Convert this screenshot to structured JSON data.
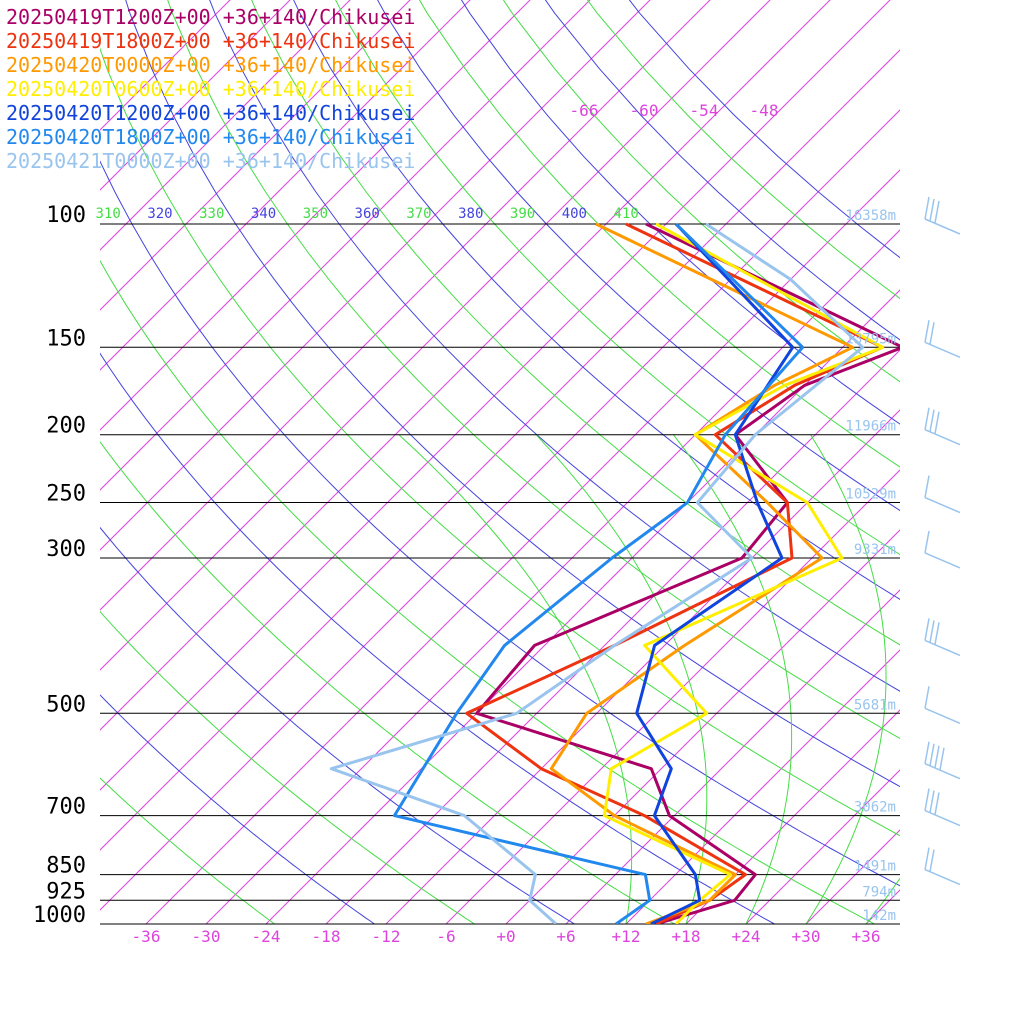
{
  "chart_data": {
    "type": "line",
    "subtype": "skew-T log-P sounding",
    "location": "+36+140/Chikusei",
    "pressure_levels": [
      {
        "p": 100,
        "label": "100",
        "height": "16358m"
      },
      {
        "p": 150,
        "label": "150",
        "height": "13795m"
      },
      {
        "p": 200,
        "label": "200",
        "height": "11966m"
      },
      {
        "p": 250,
        "label": "250",
        "height": "10529m"
      },
      {
        "p": 300,
        "label": "300",
        "height": "9331m"
      },
      {
        "p": 500,
        "label": "500",
        "height": "5681m"
      },
      {
        "p": 700,
        "label": "700",
        "height": "3062m"
      },
      {
        "p": 850,
        "label": "850",
        "height": "1491m"
      },
      {
        "p": 925,
        "label": "925",
        "height": "794m"
      },
      {
        "p": 1000,
        "label": "1000",
        "height": "142m"
      }
    ],
    "temp_tick_labels": [
      {
        "t": -36,
        "label": "-36"
      },
      {
        "t": -30,
        "label": "-30"
      },
      {
        "t": -24,
        "label": "-24"
      },
      {
        "t": -18,
        "label": "-18"
      },
      {
        "t": -12,
        "label": "-12"
      },
      {
        "t": -6,
        "label": "-6"
      },
      {
        "t": 0,
        "label": "+0"
      },
      {
        "t": 6,
        "label": "+6"
      },
      {
        "t": 12,
        "label": "+12"
      },
      {
        "t": 18,
        "label": "+18"
      },
      {
        "t": 24,
        "label": "+24"
      },
      {
        "t": 30,
        "label": "+30"
      },
      {
        "t": 36,
        "label": "+36"
      }
    ],
    "upper_temp_labels": [
      {
        "t": -66,
        "label": "-66"
      },
      {
        "t": -60,
        "label": "-60"
      },
      {
        "t": -54,
        "label": "-54"
      },
      {
        "t": -48,
        "label": "-48"
      }
    ],
    "theta_labels": [
      {
        "theta": 310,
        "label": "310",
        "color": "#44dd44"
      },
      {
        "theta": 320,
        "label": "320",
        "color": "#4444dd"
      },
      {
        "theta": 330,
        "label": "330",
        "color": "#44dd44"
      },
      {
        "theta": 340,
        "label": "340",
        "color": "#4444dd"
      },
      {
        "theta": 350,
        "label": "350",
        "color": "#44dd44"
      },
      {
        "theta": 360,
        "label": "360",
        "color": "#4444dd"
      },
      {
        "theta": 370,
        "label": "370",
        "color": "#44dd44"
      },
      {
        "theta": 380,
        "label": "380",
        "color": "#4444dd"
      },
      {
        "theta": 390,
        "label": "390",
        "color": "#44dd44"
      },
      {
        "theta": 400,
        "label": "400",
        "color": "#4444dd"
      },
      {
        "theta": 410,
        "label": "410",
        "color": "#44dd44"
      }
    ],
    "series": [
      {
        "name": "20250419T1200Z+00 +36+140/Chikusei",
        "color": "#aa0066",
        "points": [
          [
            1000,
            15
          ],
          [
            925,
            20.5
          ],
          [
            850,
            20
          ],
          [
            700,
            5.5
          ],
          [
            600,
            -1
          ],
          [
            500,
            -24
          ],
          [
            400,
            -25
          ],
          [
            300,
            -13
          ],
          [
            250,
            -14
          ],
          [
            200,
            -26
          ],
          [
            170,
            -24
          ],
          [
            150,
            -18
          ],
          [
            100,
            -56
          ]
        ]
      },
      {
        "name": "20250419T1800Z+00 +36+140/Chikusei",
        "color": "#ee3311",
        "points": [
          [
            1000,
            15
          ],
          [
            925,
            18
          ],
          [
            850,
            19
          ],
          [
            700,
            3
          ],
          [
            600,
            -12
          ],
          [
            500,
            -25
          ],
          [
            400,
            -17
          ],
          [
            300,
            -8
          ],
          [
            250,
            -14
          ],
          [
            200,
            -28
          ],
          [
            170,
            -25
          ],
          [
            150,
            -20
          ],
          [
            100,
            -58
          ]
        ]
      },
      {
        "name": "20250420T0000Z+00 +36+140/Chikusei",
        "color": "#ff9900",
        "points": [
          [
            1000,
            14
          ],
          [
            925,
            18
          ],
          [
            850,
            18
          ],
          [
            700,
            0
          ],
          [
            600,
            -11
          ],
          [
            500,
            -13
          ],
          [
            400,
            -10
          ],
          [
            300,
            -5
          ],
          [
            250,
            -16
          ],
          [
            200,
            -30
          ],
          [
            170,
            -27
          ],
          [
            150,
            -23
          ],
          [
            100,
            -61
          ]
        ]
      },
      {
        "name": "20250420T0600Z+00 +36+140/Chikusei",
        "color": "#ffee00",
        "points": [
          [
            1000,
            17
          ],
          [
            925,
            17
          ],
          [
            850,
            17.5
          ],
          [
            700,
            -1
          ],
          [
            600,
            -5
          ],
          [
            500,
            -1
          ],
          [
            400,
            -14
          ],
          [
            300,
            -3
          ],
          [
            250,
            -12
          ],
          [
            200,
            -30
          ],
          [
            170,
            -26
          ],
          [
            150,
            -20
          ],
          [
            100,
            -55
          ]
        ]
      },
      {
        "name": "20250420T1200Z+00 +36+140/Chikusei",
        "color": "#1144dd",
        "points": [
          [
            1000,
            14.5
          ],
          [
            925,
            17
          ],
          [
            850,
            14
          ],
          [
            700,
            4
          ],
          [
            600,
            1
          ],
          [
            500,
            -8
          ],
          [
            400,
            -13
          ],
          [
            300,
            -9
          ],
          [
            250,
            -17
          ],
          [
            200,
            -26
          ],
          [
            150,
            -29
          ],
          [
            100,
            -53
          ]
        ]
      },
      {
        "name": "20250420T1800Z+00 +36+140/Chikusei",
        "color": "#2288ee",
        "points": [
          [
            1000,
            11
          ],
          [
            925,
            12
          ],
          [
            850,
            9
          ],
          [
            700,
            -22
          ],
          [
            500,
            -26
          ],
          [
            400,
            -28
          ],
          [
            300,
            -26
          ],
          [
            250,
            -24
          ],
          [
            200,
            -27
          ],
          [
            150,
            -28
          ],
          [
            100,
            -53
          ]
        ]
      },
      {
        "name": "20250421T0000Z+00 +36+140/Chikusei",
        "color": "#99c4ee",
        "points": [
          [
            1000,
            5
          ],
          [
            925,
            0
          ],
          [
            850,
            -2
          ],
          [
            700,
            -15
          ],
          [
            600,
            -33
          ],
          [
            500,
            -20
          ],
          [
            400,
            -17
          ],
          [
            300,
            -12
          ],
          [
            250,
            -23
          ],
          [
            200,
            -24
          ],
          [
            150,
            -22
          ],
          [
            120,
            -36
          ],
          [
            100,
            -50
          ]
        ]
      }
    ],
    "winds": [
      {
        "p": 100,
        "barbs": "three barbs"
      },
      {
        "p": 150,
        "barbs": "two barbs"
      },
      {
        "p": 200,
        "barbs": "three barbs"
      },
      {
        "p": 250,
        "barbs": "pennant"
      },
      {
        "p": 300,
        "barbs": "pennant"
      },
      {
        "p": 400,
        "barbs": "three barbs"
      },
      {
        "p": 500,
        "barbs": "one barb"
      },
      {
        "p": 600,
        "barbs": "four barbs"
      },
      {
        "p": 700,
        "barbs": "three barbs"
      },
      {
        "p": 850,
        "barbs": "two barbs"
      }
    ]
  }
}
